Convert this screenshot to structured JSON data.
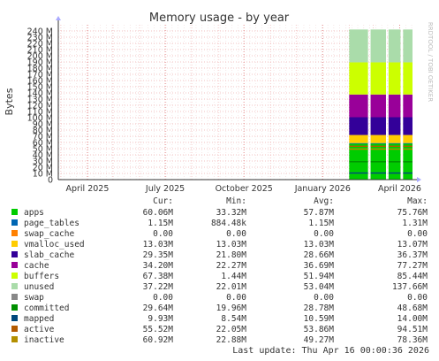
{
  "chart_data": {
    "type": "area",
    "title": "Memory usage - by year",
    "ylabel": "Bytes",
    "watermark": "RRDTOOL / TOBI OETIKER",
    "ylim": [
      0,
      250
    ],
    "y_unit": "M",
    "y_ticks": [
      0,
      10,
      20,
      30,
      40,
      50,
      60,
      70,
      80,
      90,
      100,
      110,
      120,
      130,
      140,
      150,
      160,
      170,
      180,
      190,
      200,
      210,
      220,
      230,
      240
    ],
    "x_range": [
      "2025-02-26",
      "2026-04-16"
    ],
    "x_ticks": [
      {
        "date": "2025-04-01",
        "label": "April 2025"
      },
      {
        "date": "2025-07-01",
        "label": "July 2025"
      },
      {
        "date": "2025-10-01",
        "label": "October 2025"
      },
      {
        "date": "2026-01-01",
        "label": "January 2026"
      },
      {
        "date": "2026-04-01",
        "label": "April 2026"
      }
    ],
    "data_start": "2026-02-01",
    "gaps": [
      [
        "2026-02-23",
        "2026-02-26"
      ],
      [
        "2026-03-16",
        "2026-03-19"
      ],
      [
        "2026-04-02",
        "2026-04-05"
      ]
    ],
    "stack": [
      {
        "name": "apps",
        "value": 57.87
      },
      {
        "name": "page_tables",
        "value": 1.15
      },
      {
        "name": "swap_cache",
        "value": 0.0
      },
      {
        "name": "vmalloc_used",
        "value": 13.03
      },
      {
        "name": "slab_cache",
        "value": 28.66
      },
      {
        "name": "cache",
        "value": 36.69
      },
      {
        "name": "buffers",
        "value": 51.94
      },
      {
        "name": "unused",
        "value": 53.04
      },
      {
        "name": "swap",
        "value": 0.0
      }
    ],
    "line_series": [
      {
        "name": "committed",
        "value": 28.78
      },
      {
        "name": "mapped",
        "value": 10.59
      },
      {
        "name": "active",
        "value": 53.86
      },
      {
        "name": "inactive",
        "value": 49.27
      }
    ],
    "legend_headers": [
      "Cur:",
      "Min:",
      "Avg:",
      "Max:"
    ],
    "legend": [
      {
        "name": "apps",
        "color": "#00cc00",
        "cur": "60.06M",
        "min": "33.32M",
        "avg": "57.87M",
        "max": "75.76M"
      },
      {
        "name": "page_tables",
        "color": "#0066b3",
        "cur": "1.15M",
        "min": "884.48k",
        "avg": "1.15M",
        "max": "1.31M"
      },
      {
        "name": "swap_cache",
        "color": "#ff8000",
        "cur": "0.00",
        "min": "0.00",
        "avg": "0.00",
        "max": "0.00"
      },
      {
        "name": "vmalloc_used",
        "color": "#ffcc00",
        "cur": "13.03M",
        "min": "13.03M",
        "avg": "13.03M",
        "max": "13.07M"
      },
      {
        "name": "slab_cache",
        "color": "#330099",
        "cur": "29.35M",
        "min": "21.80M",
        "avg": "28.66M",
        "max": "36.37M"
      },
      {
        "name": "cache",
        "color": "#990099",
        "cur": "34.20M",
        "min": "22.27M",
        "avg": "36.69M",
        "max": "77.27M"
      },
      {
        "name": "buffers",
        "color": "#ccff00",
        "cur": "67.38M",
        "min": "1.44M",
        "avg": "51.94M",
        "max": "85.44M"
      },
      {
        "name": "unused",
        "color": "#aadcaa",
        "cur": "37.22M",
        "min": "22.01M",
        "avg": "53.04M",
        "max": "137.66M"
      },
      {
        "name": "swap",
        "color": "#888888",
        "cur": "0.00",
        "min": "0.00",
        "avg": "0.00",
        "max": "0.00"
      },
      {
        "name": "committed",
        "color": "#008f00",
        "cur": "29.64M",
        "min": "19.96M",
        "avg": "28.78M",
        "max": "48.68M"
      },
      {
        "name": "mapped",
        "color": "#00487d",
        "cur": "9.93M",
        "min": "8.54M",
        "avg": "10.59M",
        "max": "14.00M"
      },
      {
        "name": "active",
        "color": "#b35a00",
        "cur": "55.52M",
        "min": "22.05M",
        "avg": "53.86M",
        "max": "94.51M"
      },
      {
        "name": "inactive",
        "color": "#b38f00",
        "cur": "60.92M",
        "min": "22.88M",
        "avg": "49.27M",
        "max": "78.36M"
      }
    ],
    "last_update": "Last update: Thu Apr 16 00:00:36 2026"
  }
}
